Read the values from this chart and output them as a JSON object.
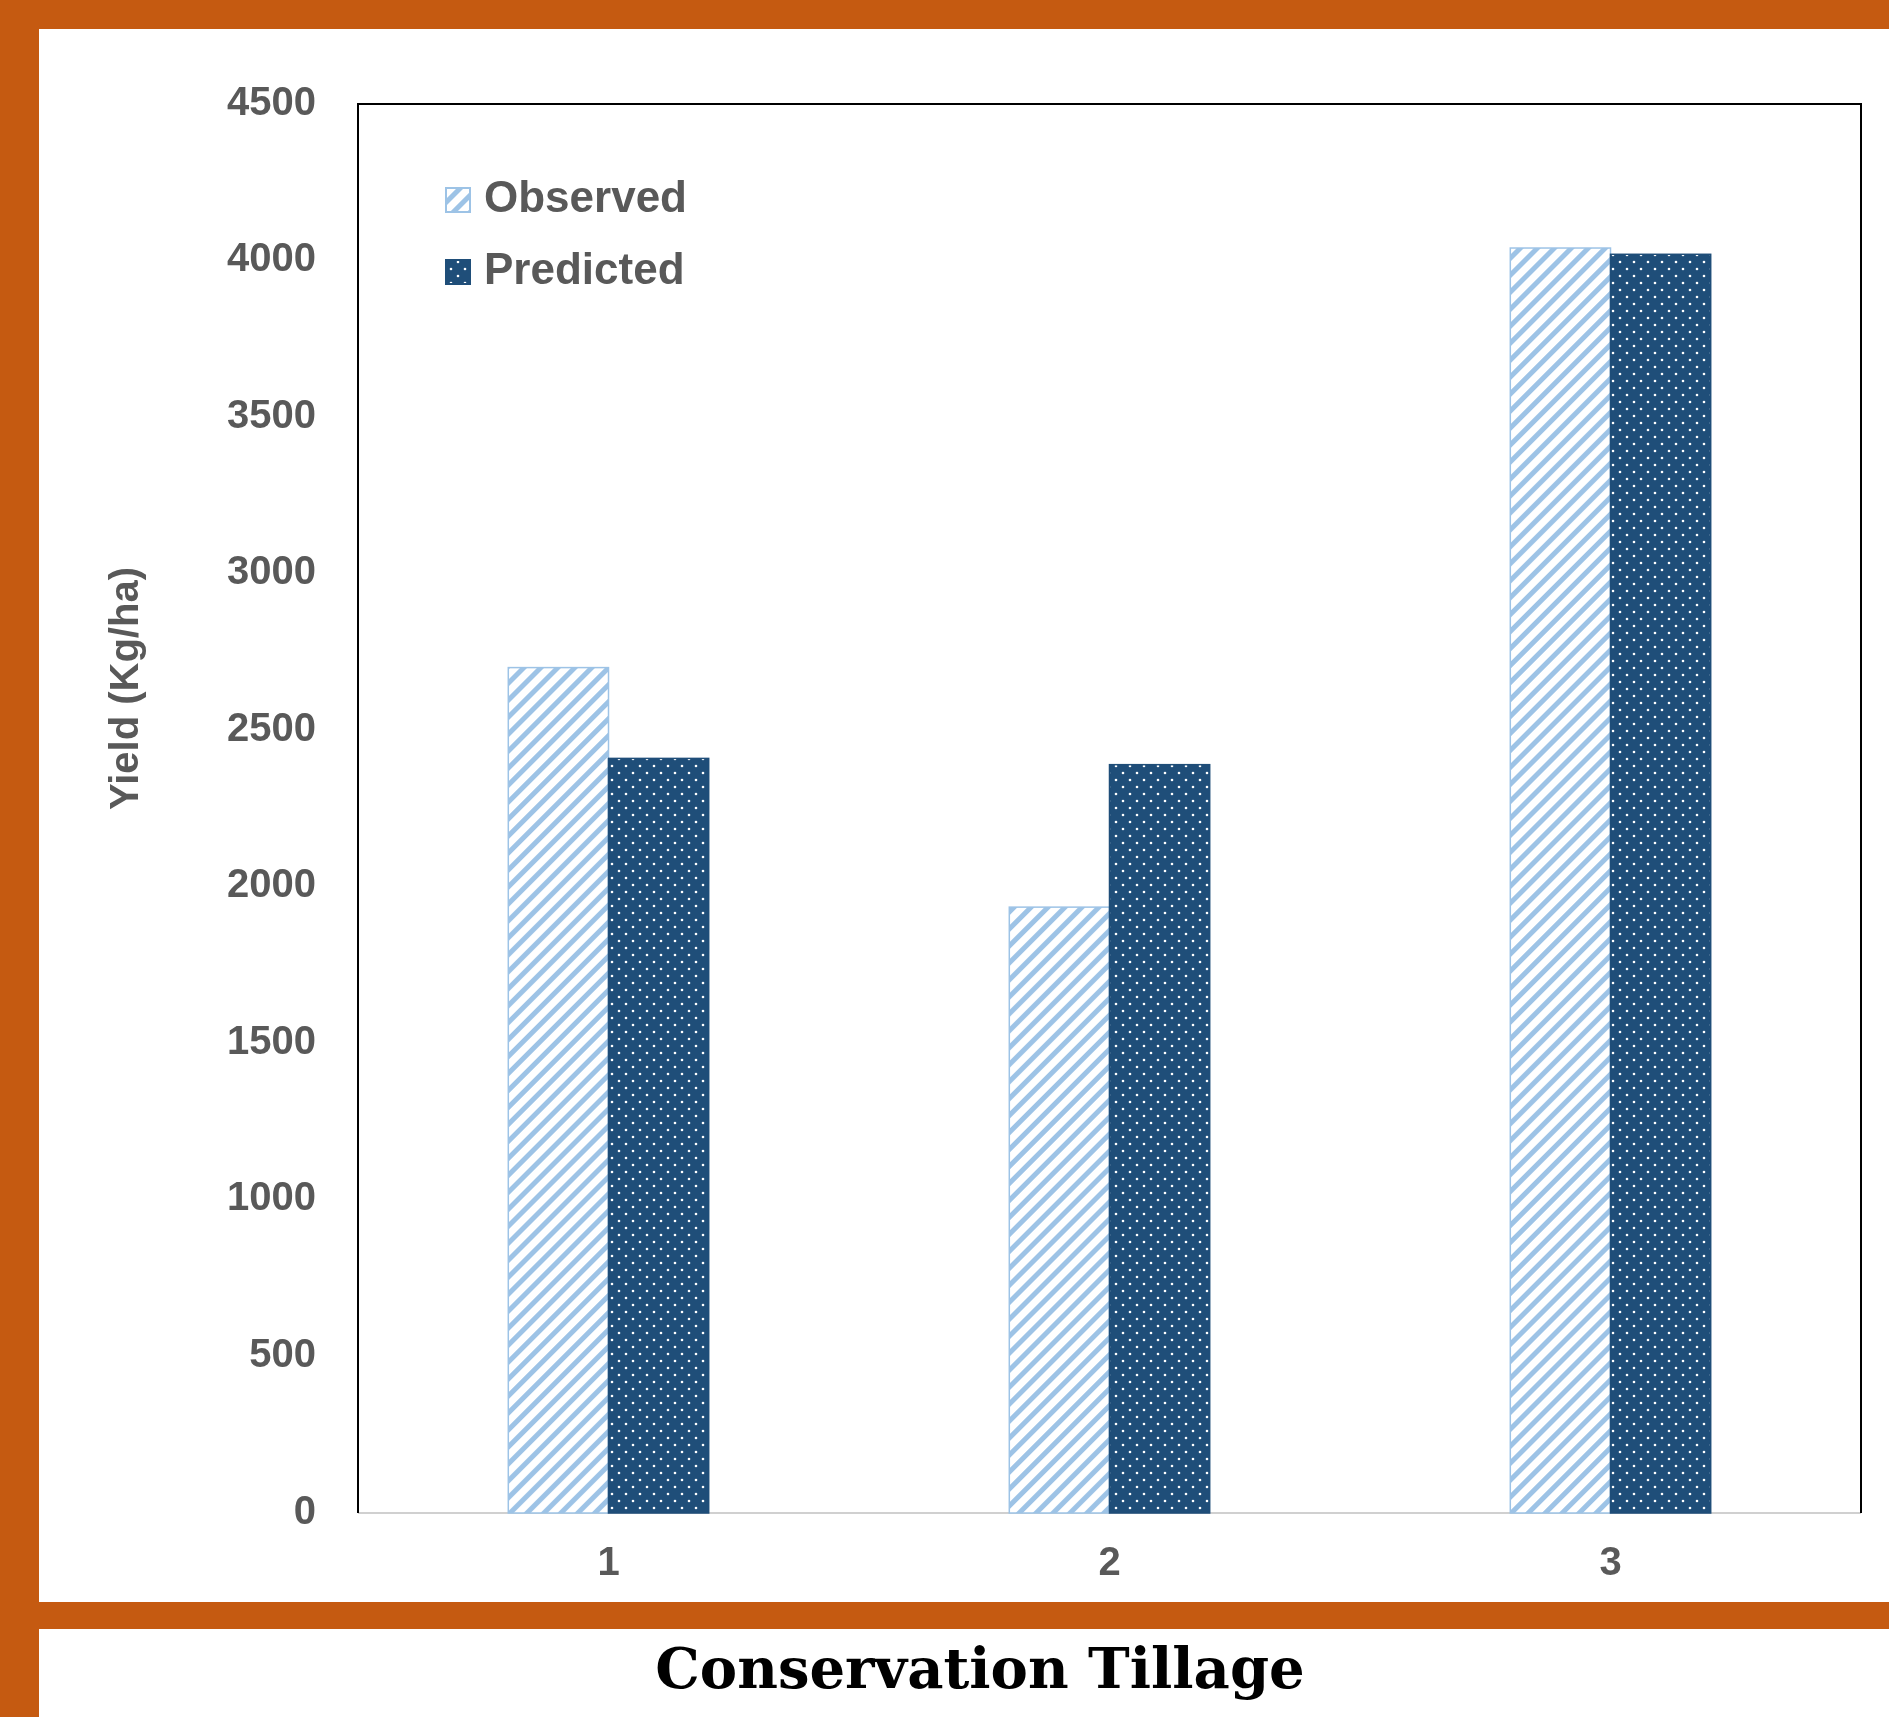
{
  "chart_data": {
    "type": "bar",
    "title": "Conservation Tillage",
    "ylabel": "Yield (Kg/ha)",
    "categories": [
      "1",
      "2",
      "3"
    ],
    "series": [
      {
        "name": "Observed",
        "color": "#9dc3e6",
        "values": [
          2700,
          1935,
          4040
        ]
      },
      {
        "name": "Predicted",
        "color": "#1f4e79",
        "values": [
          2410,
          2390,
          4020
        ]
      }
    ],
    "ylim": [
      0,
      4500
    ],
    "yticks": [
      0,
      500,
      1000,
      1500,
      2000,
      2500,
      3000,
      3500,
      4000,
      4500
    ],
    "grid": false,
    "legend": "top left"
  }
}
